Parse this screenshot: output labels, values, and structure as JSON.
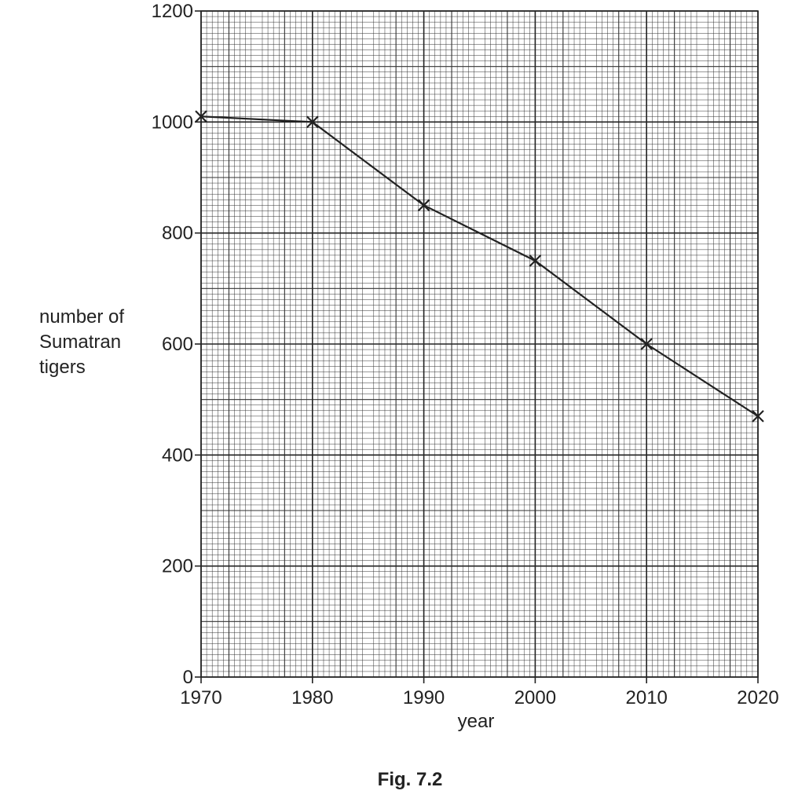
{
  "chart_data": {
    "type": "line",
    "caption": "Fig. 7.2",
    "x_label": "year",
    "y_label": "number of Sumatran tigers",
    "x": [
      1970,
      1980,
      1990,
      2000,
      2010,
      2020
    ],
    "values": [
      1010,
      1000,
      850,
      750,
      600,
      470
    ],
    "color": "#222222",
    "marker": "x",
    "xlim": [
      1970,
      2020
    ],
    "xticks": [
      1970,
      1980,
      1990,
      2000,
      2010,
      2020
    ],
    "ylim": [
      0,
      1200
    ],
    "yticks": [
      0,
      200,
      400,
      600,
      800,
      1000,
      1200
    ],
    "grid": true
  }
}
